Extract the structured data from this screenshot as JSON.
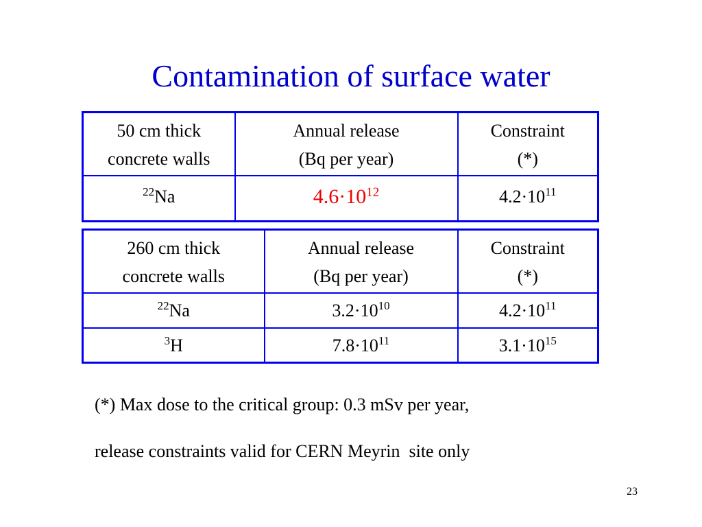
{
  "title": "Contamination of surface water",
  "tables": [
    {
      "header": [
        [
          "50 cm thick",
          "concrete walls"
        ],
        [
          "Annual release",
          "(Bq per year)"
        ],
        [
          "Constraint",
          "(*)"
        ]
      ],
      "rows": [
        [
          {
            "mass": "22",
            "element": "Na"
          },
          {
            "mantissa": "4.6·10",
            "exponent": "12"
          },
          {
            "mantissa": "4.2·10",
            "exponent": "11"
          }
        ]
      ]
    },
    {
      "header": [
        [
          "260 cm thick",
          "concrete walls"
        ],
        [
          "Annual release",
          "(Bq per year)"
        ],
        [
          "Constraint",
          "(*)"
        ]
      ],
      "rows": [
        [
          {
            "mass": "22",
            "element": "Na"
          },
          {
            "mantissa": "3.2·10",
            "exponent": "10"
          },
          {
            "mantissa": "4.2·10",
            "exponent": "11"
          }
        ],
        [
          {
            "mass": "3",
            "element": "H"
          },
          {
            "mantissa": "7.8·10",
            "exponent": "11"
          },
          {
            "mantissa": "3.1·10",
            "exponent": "15"
          }
        ]
      ]
    }
  ],
  "footnote": [
    "(*) Max dose to the critical group: 0.3 mSv per year,",
    "release constraints valid for CERN Meyrin  site only"
  ],
  "page_number": "23"
}
